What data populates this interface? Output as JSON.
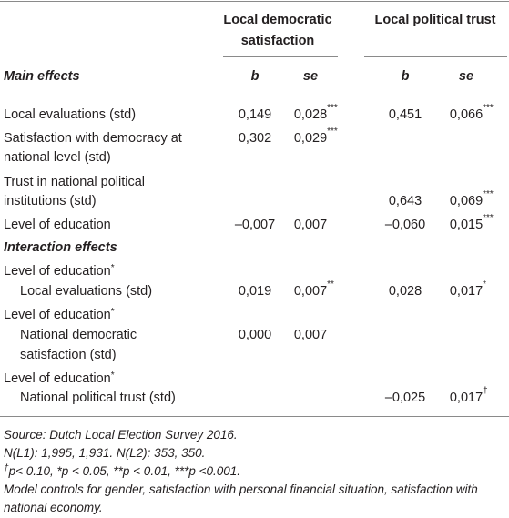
{
  "header": {
    "groups": [
      [
        "Local democratic",
        "satisfaction"
      ],
      [
        "Local political trust"
      ]
    ],
    "subheaders": [
      "b",
      "se",
      "b",
      "se"
    ]
  },
  "sections": [
    {
      "title": "Main effects",
      "rows": [
        {
          "label": [
            "Local evaluations (std)"
          ],
          "cells": [
            {
              "value": "0,149"
            },
            {
              "value": "0,028",
              "sup": "***"
            },
            {
              "value": "0,451"
            },
            {
              "value": "0,066",
              "sup": "***"
            }
          ]
        },
        {
          "label": [
            "Satisfaction with democracy at",
            "national level (std)"
          ],
          "cells": [
            {
              "value": "0,302"
            },
            {
              "value": "0,029",
              "sup": "***"
            },
            null,
            null
          ]
        },
        {
          "label": [
            "Trust in national political",
            "institutions (std)"
          ],
          "cells": [
            null,
            null,
            {
              "value": "0,643"
            },
            {
              "value": "0,069",
              "sup": "***"
            }
          ]
        },
        {
          "label": [
            "Level of education"
          ],
          "cells": [
            {
              "value": "–0,007"
            },
            {
              "value": "0,007"
            },
            {
              "value": "–0,060"
            },
            {
              "value": "0,015",
              "sup": "***"
            }
          ]
        }
      ]
    },
    {
      "title": "Interaction effects",
      "rows": [
        {
          "label": [
            "Level of education"
          ],
          "label_sup": "*",
          "sublabel": [
            "Local evaluations (std)"
          ],
          "cells": [
            {
              "value": "0,019"
            },
            {
              "value": "0,007",
              "sup": "**"
            },
            {
              "value": "0,028"
            },
            {
              "value": "0,017",
              "sup": "*"
            }
          ]
        },
        {
          "label": [
            "Level of education"
          ],
          "label_sup": "*",
          "sublabel": [
            "National democratic",
            "satisfaction (std)"
          ],
          "cells": [
            {
              "value": "0,000"
            },
            {
              "value": "0,007"
            },
            null,
            null
          ]
        },
        {
          "label": [
            "Level of education"
          ],
          "label_sup": "*",
          "sublabel": [
            "National political trust (std)"
          ],
          "cells": [
            null,
            null,
            {
              "value": "–0,025"
            },
            {
              "value": "0,017",
              "sup": "†"
            }
          ]
        }
      ]
    }
  ],
  "notes": [
    {
      "text": "Source: Dutch Local Election Survey 2016."
    },
    {
      "text": "N(L1): 1,995, 1,931. N(L2): 353, 350."
    },
    {
      "sup": "†",
      "text": "p< 0.10, *p < 0.05, **p < 0.01, ***p <0.001."
    },
    {
      "text": "Model controls for gender, satisfaction with personal financial situation, satisfaction with national economy."
    }
  ]
}
